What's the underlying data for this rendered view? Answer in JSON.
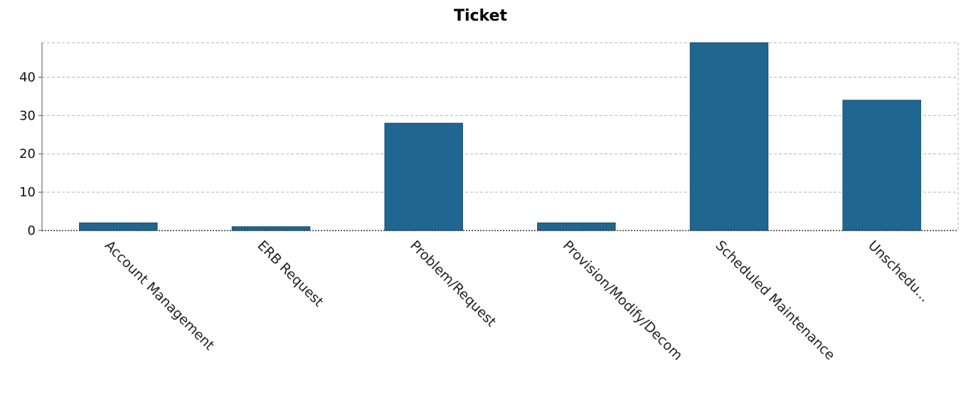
{
  "chart_data": {
    "type": "bar",
    "title": "Ticket",
    "xlabel": "",
    "ylabel": "",
    "categories": [
      "Account Management",
      "ERB Request",
      "Problem/Request",
      "Provision/Modify/Decom",
      "Scheduled Maintenance",
      "Unschedu..."
    ],
    "values": [
      2,
      1,
      28,
      2,
      49,
      34
    ],
    "ylim": [
      0,
      49
    ],
    "yticks": [
      0,
      10,
      20,
      30,
      40
    ],
    "grid": true,
    "legend": "none",
    "bar_color": "#1f6690"
  }
}
